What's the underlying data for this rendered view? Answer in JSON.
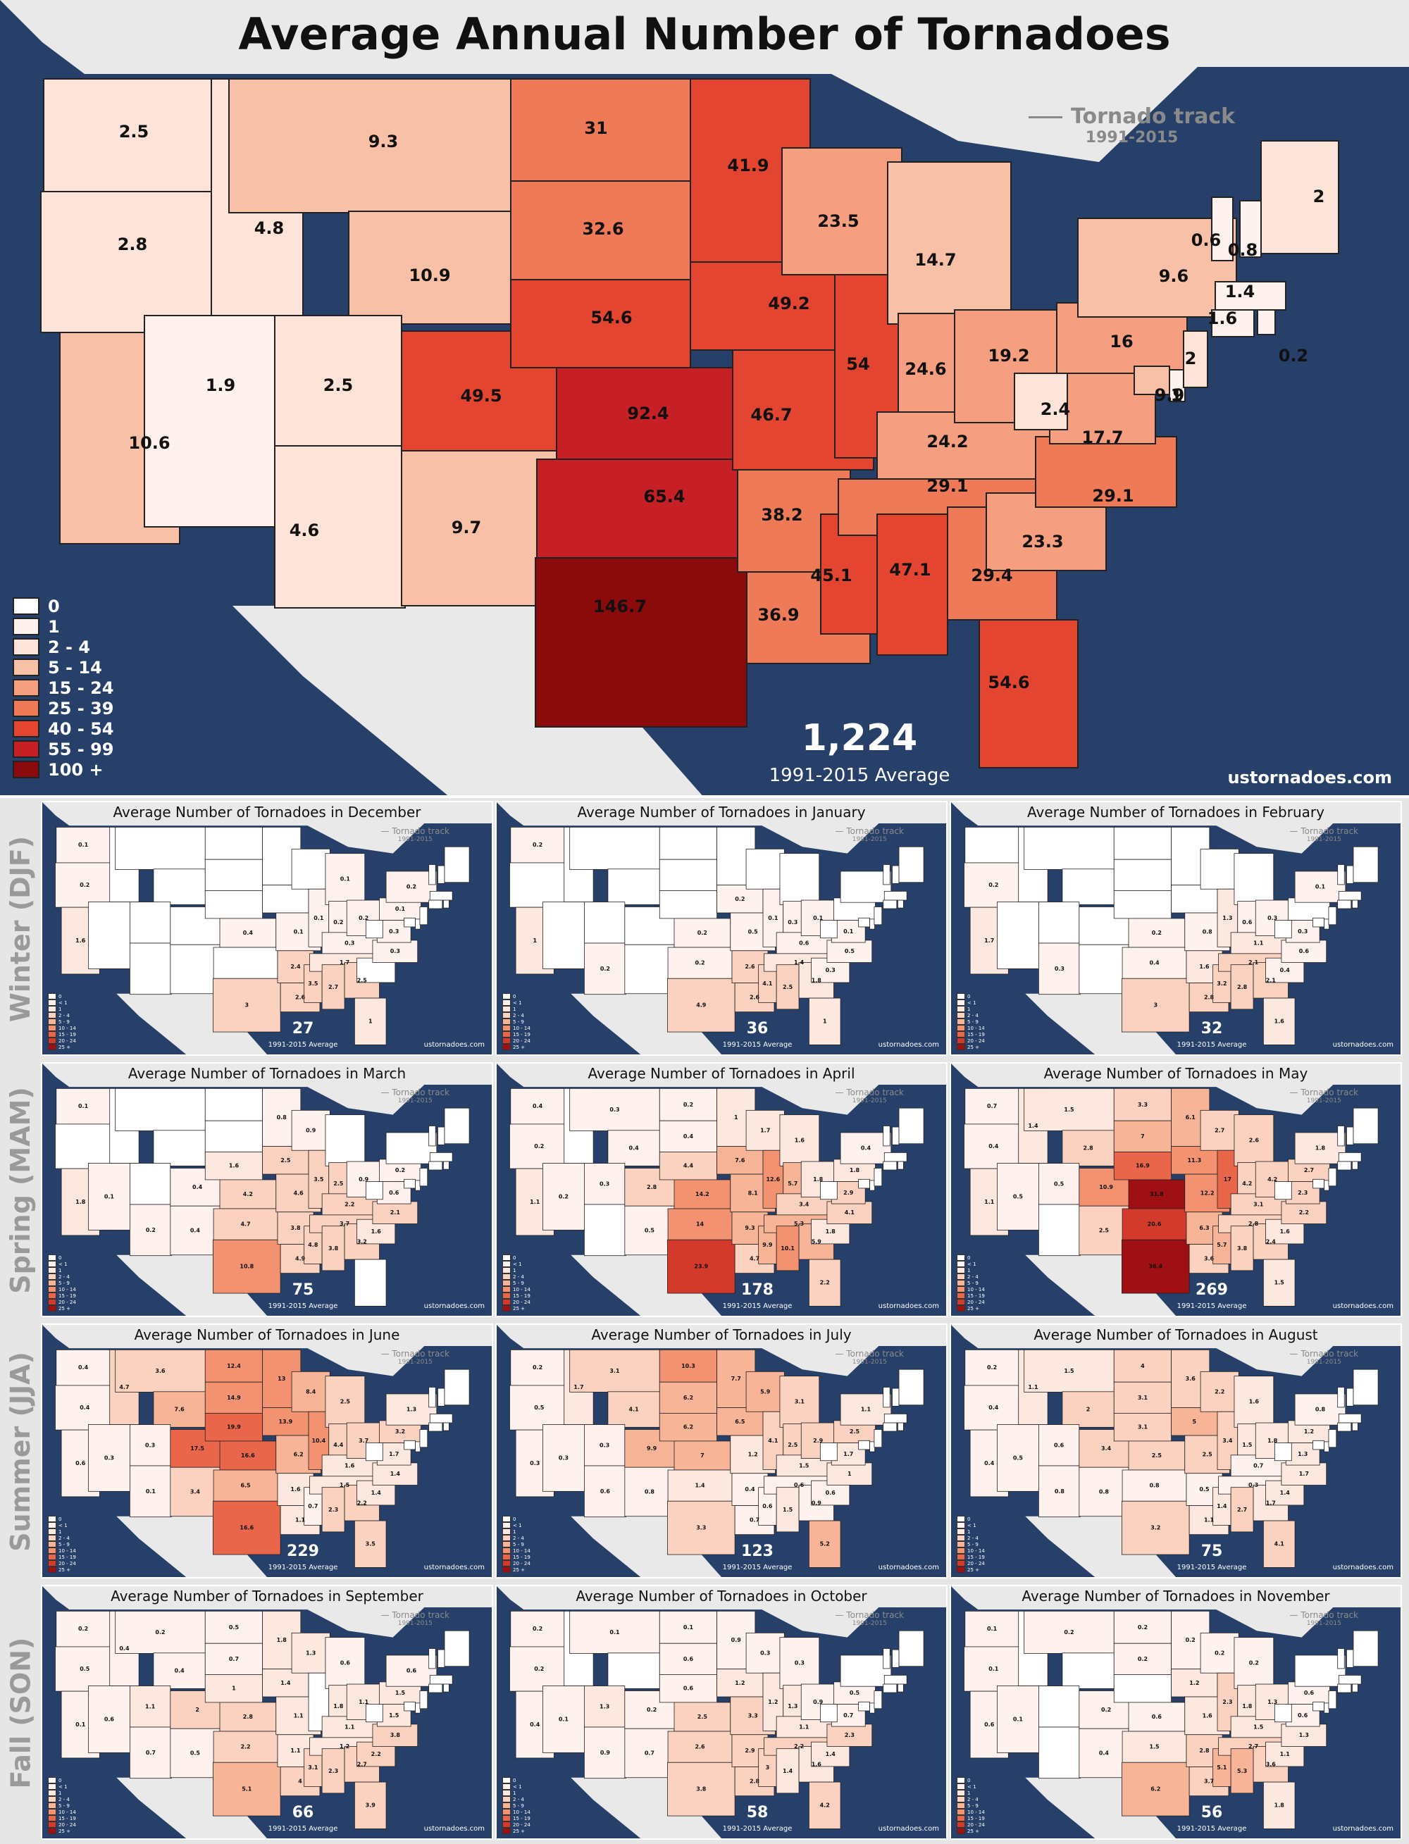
{
  "main": {
    "title": "Average Annual Number of Tornadoes",
    "track_key": {
      "label": "Tornado track",
      "years": "1991-2015"
    },
    "total": "1,224",
    "avg_label": "1991-2015 Average",
    "source": "ustornadoes.com",
    "legend": [
      {
        "label": "0",
        "color": "#ffffff"
      },
      {
        "label": "1",
        "color": "#fff2ee"
      },
      {
        "label": "2 - 4",
        "color": "#fde3d8"
      },
      {
        "label": "5 - 14",
        "color": "#f9c0a8"
      },
      {
        "label": "15 - 24",
        "color": "#f59e80"
      },
      {
        "label": "25 - 39",
        "color": "#ef7a57"
      },
      {
        "label": "40 - 54",
        "color": "#e44530"
      },
      {
        "label": "55 - 99",
        "color": "#c61f25"
      },
      {
        "label": "100 +",
        "color": "#8b0a0c"
      }
    ],
    "states": [
      {
        "id": "WA",
        "value": "2.5"
      },
      {
        "id": "OR",
        "value": "2.8"
      },
      {
        "id": "CA",
        "value": "10.6"
      },
      {
        "id": "ID",
        "value": "4.8"
      },
      {
        "id": "NV",
        "value": "1.9"
      },
      {
        "id": "MT",
        "value": "9.3"
      },
      {
        "id": "WY",
        "value": "10.9"
      },
      {
        "id": "UT",
        "value": "2.5"
      },
      {
        "id": "AZ",
        "value": "4.6"
      },
      {
        "id": "CO",
        "value": "49.5"
      },
      {
        "id": "NM",
        "value": "9.7"
      },
      {
        "id": "ND",
        "value": "31"
      },
      {
        "id": "SD",
        "value": "32.6"
      },
      {
        "id": "NE",
        "value": "54.6"
      },
      {
        "id": "KS",
        "value": "92.4"
      },
      {
        "id": "OK",
        "value": "65.4"
      },
      {
        "id": "TX",
        "value": "146.7"
      },
      {
        "id": "MN",
        "value": "41.9"
      },
      {
        "id": "IA",
        "value": "49.2"
      },
      {
        "id": "MO",
        "value": "46.7"
      },
      {
        "id": "AR",
        "value": "38.2"
      },
      {
        "id": "LA",
        "value": "36.9"
      },
      {
        "id": "WI",
        "value": "23.5"
      },
      {
        "id": "IL",
        "value": "54"
      },
      {
        "id": "MS",
        "value": "45.1"
      },
      {
        "id": "MI",
        "value": "14.7"
      },
      {
        "id": "IN",
        "value": "24.6"
      },
      {
        "id": "KY",
        "value": "24.2"
      },
      {
        "id": "TN",
        "value": "29.1"
      },
      {
        "id": "AL",
        "value": "47.1"
      },
      {
        "id": "OH",
        "value": "19.2"
      },
      {
        "id": "GA",
        "value": "29.4"
      },
      {
        "id": "FL",
        "value": "54.6"
      },
      {
        "id": "SC",
        "value": "23.3"
      },
      {
        "id": "NC",
        "value": "29.1"
      },
      {
        "id": "VA",
        "value": "17.7"
      },
      {
        "id": "WV",
        "value": "2.4"
      },
      {
        "id": "PA",
        "value": "16"
      },
      {
        "id": "NY",
        "value": "9.6"
      },
      {
        "id": "MD",
        "value": "9.9"
      },
      {
        "id": "DE",
        "value": "1"
      },
      {
        "id": "NJ",
        "value": "2"
      },
      {
        "id": "VT",
        "value": "0.6"
      },
      {
        "id": "NH",
        "value": "0.8"
      },
      {
        "id": "ME",
        "value": "2"
      },
      {
        "id": "MA",
        "value": "1.4"
      },
      {
        "id": "CT",
        "value": "1.6"
      },
      {
        "id": "RI",
        "value": "0.2"
      }
    ]
  },
  "seasons": [
    "Winter (DJF)",
    "Spring (MAM)",
    "Summer (JJA)",
    "Fall (SON)"
  ],
  "panel_common": {
    "track_label": "Tornado track",
    "track_years": "1991-2015",
    "avg_label": "1991-2015 Average",
    "source": "ustornadoes.com",
    "legend": [
      {
        "label": "0",
        "color": "#ffffff"
      },
      {
        "label": "< 1",
        "color": "#fff2ee"
      },
      {
        "label": "1",
        "color": "#fde8df"
      },
      {
        "label": "2 - 4",
        "color": "#fbd2c0"
      },
      {
        "label": "5 - 9",
        "color": "#f7b497"
      },
      {
        "label": "10 - 14",
        "color": "#f29270"
      },
      {
        "label": "15 - 19",
        "color": "#e9664a"
      },
      {
        "label": "20 - 24",
        "color": "#d43a2c"
      },
      {
        "label": "25 +",
        "color": "#9e1014"
      }
    ]
  },
  "months": [
    {
      "title": "Average Number of Tornadoes in December",
      "total": "27",
      "states": {
        "WA": "0.1",
        "OR": "0.2",
        "CA": "1.6",
        "TX": "3",
        "MO": "0.1",
        "KS": "0.4",
        "IL": "0.1",
        "IN": "0.2",
        "OH": "0.2",
        "KY": "0.3",
        "TN": "1.7",
        "AR": "2.4",
        "MS": "3.5",
        "AL": "2.7",
        "GA": "2.5",
        "NC": "0.3",
        "FL": "1",
        "VA": "0.3",
        "PA": "0.1",
        "NY": "0.2",
        "MI": "0.1",
        "LA": "2.6"
      }
    },
    {
      "title": "Average Number of Tornadoes in January",
      "total": "36",
      "states": {
        "WA": "0.2",
        "CA": "1",
        "TX": "4.9",
        "IL": "0.1",
        "IA": "0.2",
        "MO": "0.5",
        "KS": "0.2",
        "OK": "0.2",
        "AR": "2.6",
        "TN": "1.4",
        "KY": "0.6",
        "OH": "0.1",
        "IN": "0.3",
        "MS": "4.1",
        "AL": "2.5",
        "GA": "1.8",
        "LA": "2.6",
        "SC": "0.3",
        "NC": "0.5",
        "VA": "0.1",
        "FL": "1",
        "AZ": "0.2"
      }
    },
    {
      "title": "Average Number of Tornadoes in February",
      "total": "32",
      "states": {
        "OR": "0.2",
        "CA": "1.7",
        "AZ": "0.3",
        "TX": "3",
        "OK": "0.4",
        "KS": "0.2",
        "MO": "0.8",
        "AR": "1.6",
        "TN": "2.1",
        "KY": "1.1",
        "IL": "1.3",
        "IN": "0.6",
        "OH": "0.3",
        "MS": "3.2",
        "AL": "2.8",
        "GA": "2.1",
        "LA": "2.8",
        "SC": "0.4",
        "NC": "0.6",
        "VA": "0.3",
        "FL": "1.6",
        "NY": "0.1"
      }
    },
    {
      "title": "Average Number of Tornadoes in March",
      "total": "75",
      "states": {
        "WA": "0.1",
        "CA": "1.8",
        "NV": "0.1",
        "AZ": "0.2",
        "NM": "0.4",
        "CO": "0.4",
        "NE": "1.6",
        "KS": "4.2",
        "OK": "4.7",
        "TX": "10.8",
        "MO": "4.6",
        "IA": "2.5",
        "IL": "3.5",
        "IN": "2.5",
        "OH": "0.9",
        "KY": "2.2",
        "TN": "3.7",
        "AR": "3.8",
        "LA": "4.9",
        "MS": "4.8",
        "AL": "3.8",
        "GA": "3.2",
        "SC": "1.6",
        "NC": "2.1",
        "VA": "0.6",
        "PA": "0.2",
        "MN": "0.8",
        "WI": "0.9"
      }
    },
    {
      "title": "Average Number of Tornadoes in April",
      "total": "178",
      "states": {
        "WA": "0.4",
        "OR": "0.2",
        "CA": "1.1",
        "NV": "0.2",
        "MT": "0.3",
        "WY": "0.4",
        "UT": "0.3",
        "CO": "2.8",
        "NM": "0.5",
        "ND": "0.2",
        "SD": "0.4",
        "NE": "4.4",
        "KS": "14.2",
        "OK": "14",
        "TX": "23.9",
        "MN": "1",
        "IA": "7.6",
        "MO": "8.1",
        "AR": "9.3",
        "LA": "4.7",
        "WI": "1.7",
        "IL": "12.6",
        "MS": "9.9",
        "MI": "1.6",
        "IN": "5.7",
        "KY": "3.4",
        "TN": "5.3",
        "AL": "10.1",
        "OH": "1.8",
        "GA": "5.9",
        "SC": "1.8",
        "NC": "4.1",
        "VA": "2.9",
        "PA": "1.8",
        "NY": "0.4",
        "FL": "2.2"
      }
    },
    {
      "title": "Average Number of Tornadoes in May",
      "total": "269",
      "states": {
        "WA": "0.7",
        "OR": "0.4",
        "CA": "1.1",
        "ID": "1.4",
        "NV": "0.5",
        "MT": "1.5",
        "WY": "2.8",
        "UT": "0.5",
        "CO": "10.9",
        "NM": "2.5",
        "ND": "3.3",
        "SD": "7",
        "NE": "16.9",
        "KS": "31.8",
        "OK": "20.6",
        "TX": "36.4",
        "MN": "6.1",
        "IA": "11.3",
        "MO": "12.2",
        "AR": "6.3",
        "LA": "3.6",
        "WI": "2.7",
        "IL": "17",
        "MS": "5.7",
        "MI": "2.6",
        "IN": "4.2",
        "KY": "3.1",
        "TN": "2.8",
        "AL": "3.8",
        "OH": "4.2",
        "GA": "2.4",
        "SC": "1.6",
        "NC": "2.2",
        "VA": "2.3",
        "PA": "2.7",
        "NY": "1.8",
        "FL": "1.5"
      }
    },
    {
      "title": "Average Number of Tornadoes in June",
      "total": "229",
      "states": {
        "WA": "0.4",
        "OR": "0.4",
        "CA": "0.6",
        "ID": "4.7",
        "NV": "0.3",
        "MT": "3.6",
        "WY": "7.6",
        "UT": "0.3",
        "CO": "17.5",
        "NM": "3.4",
        "AZ": "0.1",
        "ND": "12.4",
        "SD": "14.9",
        "NE": "19.9",
        "KS": "16.6",
        "OK": "6.5",
        "TX": "16.6",
        "MN": "13",
        "IA": "13.9",
        "MO": "6.2",
        "AR": "1.6",
        "LA": "1.1",
        "WI": "8.4",
        "IL": "10.4",
        "MS": "0.7",
        "MI": "2.5",
        "IN": "4.4",
        "KY": "1.6",
        "TN": "1.5",
        "AL": "2.3",
        "OH": "3.7",
        "GA": "2.2",
        "SC": "1.4",
        "NC": "1.4",
        "VA": "1.7",
        "PA": "3.2",
        "NY": "1.3",
        "FL": "3.5"
      }
    },
    {
      "title": "Average Number of Tornadoes in July",
      "total": "123",
      "states": {
        "WA": "0.2",
        "OR": "0.5",
        "CA": "0.3",
        "ID": "1.7",
        "NV": "0.3",
        "MT": "3.1",
        "WY": "4.1",
        "UT": "0.3",
        "CO": "9.9",
        "NM": "0.8",
        "AZ": "0.6",
        "ND": "10.3",
        "SD": "6.2",
        "NE": "6.2",
        "KS": "7",
        "OK": "1.4",
        "TX": "3.3",
        "MN": "7.7",
        "IA": "6.5",
        "MO": "1.2",
        "AR": "0.4",
        "LA": "0.7",
        "WI": "5.9",
        "IL": "4.1",
        "MS": "0.6",
        "MI": "3.1",
        "IN": "2.5",
        "KY": "1.5",
        "TN": "0.6",
        "AL": "1.5",
        "OH": "2.9",
        "GA": "0.9",
        "SC": "0.6",
        "NC": "1",
        "VA": "1.7",
        "PA": "2.5",
        "NY": "1.1",
        "FL": "5.2"
      }
    },
    {
      "title": "Average Number of Tornadoes in August",
      "total": "75",
      "states": {
        "WA": "0.2",
        "OR": "0.4",
        "CA": "0.4",
        "ID": "1.1",
        "NV": "0.5",
        "MT": "1.5",
        "WY": "2",
        "UT": "0.6",
        "CO": "3.4",
        "NM": "0.8",
        "AZ": "0.8",
        "ND": "4",
        "SD": "3.1",
        "NE": "3.1",
        "KS": "2.5",
        "OK": "0.8",
        "TX": "3.2",
        "MN": "3.6",
        "IA": "5",
        "MO": "2.5",
        "AR": "0.5",
        "LA": "1.1",
        "WI": "2.2",
        "IL": "3.4",
        "MS": "1.4",
        "MI": "1.6",
        "IN": "1.5",
        "KY": "0.7",
        "TN": "0.3",
        "AL": "2.7",
        "OH": "1.8",
        "GA": "1.7",
        "SC": "1.4",
        "NC": "1.7",
        "VA": "1.3",
        "PA": "1.2",
        "NY": "0.8",
        "FL": "4.1"
      }
    },
    {
      "title": "Average Number of Tornadoes in September",
      "total": "66",
      "states": {
        "WA": "0.2",
        "OR": "0.5",
        "CA": "0.1",
        "ID": "0.4",
        "NV": "0.6",
        "MT": "0.2",
        "WY": "0.4",
        "UT": "1.1",
        "CO": "2",
        "NM": "0.5",
        "AZ": "0.7",
        "ND": "0.5",
        "SD": "0.7",
        "NE": "1",
        "KS": "2.8",
        "OK": "2.2",
        "TX": "5.1",
        "MN": "1.8",
        "IA": "1.4",
        "MO": "1.1",
        "AR": "1.1",
        "LA": "4",
        "MS": "3.1",
        "MI": "0.6",
        "IN": "1.8",
        "KY": "1.1",
        "TN": "1.2",
        "AL": "2.3",
        "OH": "1.1",
        "GA": "2.7",
        "SC": "2.2",
        "NC": "3.8",
        "VA": "1.5",
        "PA": "1.5",
        "NY": "0.6",
        "FL": "3.9",
        "WI": "1.3"
      }
    },
    {
      "title": "Average Number of Tornadoes in October",
      "total": "58",
      "states": {
        "WA": "0.2",
        "OR": "0.2",
        "CA": "0.4",
        "NV": "0.1",
        "MT": "0.1",
        "CO": "0.2",
        "NM": "0.7",
        "AZ": "0.9",
        "ND": "0.1",
        "SD": "0.6",
        "NE": "0.6",
        "KS": "2.5",
        "OK": "2.6",
        "TX": "3.8",
        "MN": "0.9",
        "IA": "1.2",
        "MO": "3.3",
        "AR": "2.9",
        "LA": "2.8",
        "WI": "0.3",
        "IL": "1.2",
        "MS": "3",
        "MI": "0.3",
        "IN": "1.3",
        "KY": "1.1",
        "TN": "2.2",
        "AL": "1.4",
        "OH": "0.9",
        "GA": "1.6",
        "SC": "1.4",
        "NC": "2.3",
        "VA": "0.7",
        "PA": "0.5",
        "FL": "4.2",
        "UT": "1.3"
      }
    },
    {
      "title": "Average Number of Tornadoes in November",
      "total": "56",
      "states": {
        "WA": "0.1",
        "OR": "0.1",
        "CA": "0.6",
        "NV": "0.1",
        "MT": "0.2",
        "NM": "0.4",
        "CO": "0.2",
        "ND": "0.2",
        "SD": "0.2",
        "KS": "0.6",
        "OK": "1.5",
        "TX": "6.2",
        "MN": "0.2",
        "IA": "1.2",
        "MO": "1.6",
        "AR": "2.8",
        "LA": "3.7",
        "WI": "0.2",
        "IL": "2.3",
        "MS": "5.1",
        "MI": "0.2",
        "IN": "1.8",
        "KY": "1.5",
        "TN": "2.7",
        "AL": "5.3",
        "OH": "1.3",
        "GA": "3.6",
        "SC": "1.1",
        "NC": "1.3",
        "VA": "0.6",
        "PA": "0.6",
        "FL": "1.8"
      }
    }
  ]
}
